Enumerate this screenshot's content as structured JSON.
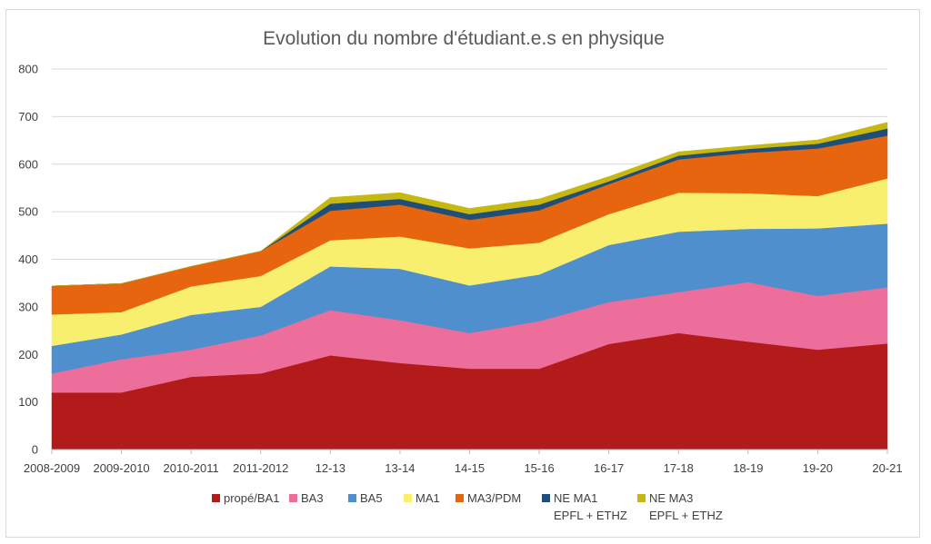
{
  "chart_data": {
    "type": "area",
    "stacked": true,
    "title": "Evolution du nombre d'étudiant.e.s en physique",
    "xlabel": "",
    "ylabel": "",
    "ylim": [
      0,
      800
    ],
    "yticks": [
      0,
      100,
      200,
      300,
      400,
      500,
      600,
      700,
      800
    ],
    "grid": true,
    "legend_position": "bottom",
    "categories": [
      "2008-2009",
      "2009-2010",
      "2010-2011",
      "2011-2012",
      "12-13",
      "13-14",
      "14-15",
      "15-16",
      "16-17",
      "17-18",
      "18-19",
      "19-20",
      "20-21"
    ],
    "series": [
      {
        "name": "propé/BA1",
        "color": "#b31b1b",
        "values": [
          120,
          120,
          153,
          160,
          198,
          182,
          170,
          170,
          222,
          245,
          227,
          210,
          223
        ]
      },
      {
        "name": "BA3",
        "color": "#ee6e9b",
        "values": [
          40,
          70,
          57,
          80,
          95,
          90,
          75,
          100,
          88,
          86,
          125,
          113,
          118
        ]
      },
      {
        "name": "BA5",
        "color": "#4f8fce",
        "values": [
          58,
          52,
          73,
          60,
          92,
          108,
          100,
          98,
          120,
          127,
          112,
          142,
          134
        ]
      },
      {
        "name": "MA1",
        "color": "#f9ef6e",
        "values": [
          66,
          47,
          60,
          65,
          55,
          68,
          78,
          67,
          65,
          82,
          75,
          68,
          95
        ]
      },
      {
        "name": "MA3/PDM",
        "color": "#e8650f",
        "values": [
          60,
          60,
          42,
          52,
          62,
          67,
          60,
          68,
          63,
          70,
          85,
          100,
          90
        ]
      },
      {
        "name": "NE MA1\nEPFL + ETHZ",
        "color": "#1f4e79",
        "values": [
          0,
          0,
          0,
          0,
          15,
          12,
          12,
          12,
          6,
          8,
          8,
          10,
          15
        ]
      },
      {
        "name": "NE MA3\nEPFL + ETHZ",
        "color": "#c6b810",
        "values": [
          0,
          0,
          0,
          0,
          13,
          13,
          12,
          12,
          10,
          8,
          7,
          8,
          13
        ]
      }
    ]
  }
}
